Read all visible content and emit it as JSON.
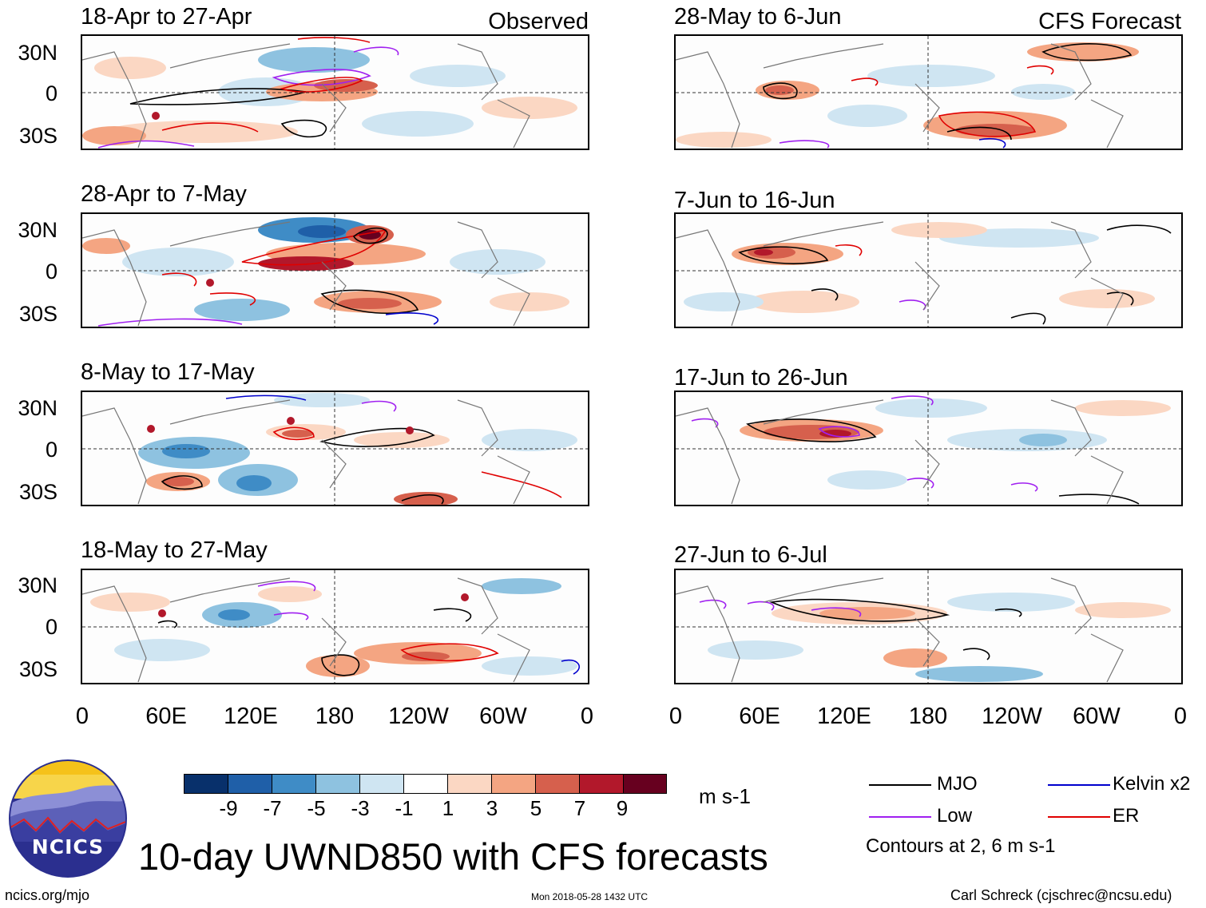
{
  "colors": {
    "mjo": "#000000",
    "low": "#a020f0",
    "kelvin": "#0000cd",
    "er": "#e00000",
    "colorbar": [
      "#08306b",
      "#1f5fa8",
      "#3f8cc6",
      "#8ec2e0",
      "#cfe5f2",
      "#ffffff",
      "#fbd7c3",
      "#f4a582",
      "#d6604d",
      "#b2182b",
      "#67001f"
    ]
  },
  "left_column": {
    "tag": "Observed",
    "panels": [
      {
        "title": "18-Apr to 27-Apr"
      },
      {
        "title": "28-Apr to 7-May"
      },
      {
        "title": "8-May to 17-May"
      },
      {
        "title": "18-May to 27-May"
      }
    ]
  },
  "right_column": {
    "tag": "CFS Forecast",
    "panels": [
      {
        "title": "28-May to 6-Jun"
      },
      {
        "title": "7-Jun to 16-Jun"
      },
      {
        "title": "17-Jun to 26-Jun"
      },
      {
        "title": "27-Jun to 6-Jul"
      }
    ]
  },
  "lat_labels": [
    "30N",
    "0",
    "30S"
  ],
  "lon_labels": [
    "0",
    "60E",
    "120E",
    "180",
    "120W",
    "60W",
    "0"
  ],
  "colorbar": {
    "labels": [
      "-9",
      "-7",
      "-5",
      "-3",
      "-1",
      "1",
      "3",
      "5",
      "7",
      "9"
    ],
    "units": "m s-1"
  },
  "legend": {
    "mjo": "MJO",
    "kelvin": "Kelvin x2",
    "low": "Low",
    "er": "ER",
    "note": "Contours at 2, 6 m s-1"
  },
  "logo": {
    "text": "NCICS"
  },
  "main_title": "10-day UWND850 with CFS forecasts",
  "footer": {
    "left": "ncics.org/mjo",
    "center": "Mon 2018-05-28 1432 UTC",
    "right": "Carl Schreck (cjschrec@ncsu.edu)"
  }
}
